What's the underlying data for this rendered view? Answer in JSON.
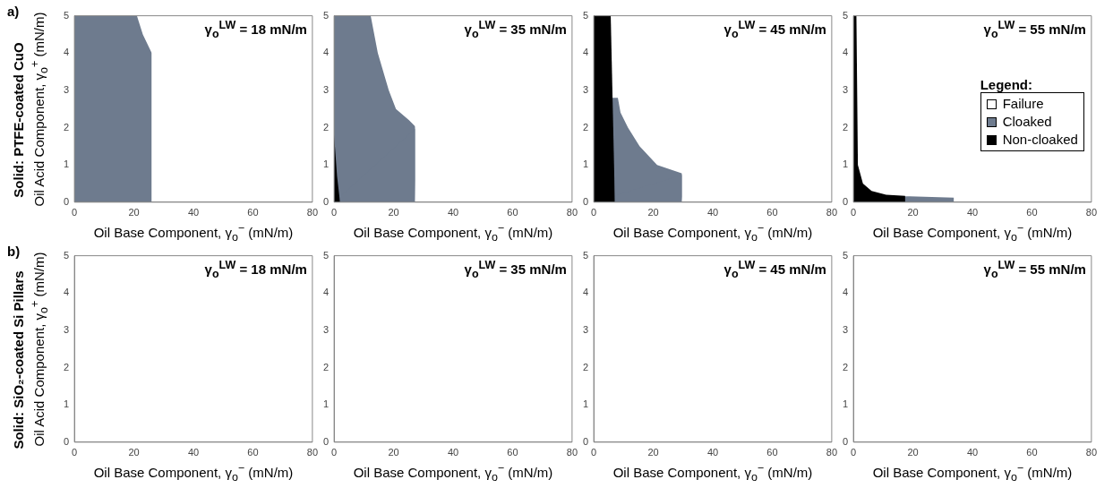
{
  "chart_data": [
    {
      "type": "area",
      "title": "γ$_{o}$$^{LW}$ = 18 mN/m",
      "xlabel": "Oil Base Component, γ$_{o}$$^{−}$ (mN/m)",
      "ylabel": "Oil Acid Component, γ$_{o}$$^{+}$ (mN/m)",
      "annotations": [
        "a)",
        "Solid: PTFE-coated CuO"
      ],
      "xlim": [
        0,
        80
      ],
      "xticks": [
        0,
        20,
        40,
        60,
        80
      ],
      "ylim": [
        0,
        5
      ],
      "yticks": [
        0,
        1,
        2,
        3,
        4,
        5
      ],
      "series": [
        {
          "color": "#6e7b8e",
          "x": [
            0,
            21,
            23,
            26,
            26
          ],
          "values": [
            5,
            5,
            4.5,
            4,
            0
          ]
        }
      ]
    },
    {
      "type": "area",
      "title": "γ$_{o}$$^{LW}$ = 35 mN/m",
      "xlabel": "Oil Base Component, γ$_{o}$$^{−}$ (mN/m)",
      "xlim": [
        0,
        80
      ],
      "xticks": [
        0,
        20,
        40,
        60,
        80
      ],
      "ylim": [
        0,
        5
      ],
      "yticks": [
        0,
        1,
        2,
        3,
        4,
        5
      ],
      "series": [
        {
          "color": "#6e7b8e",
          "x": [
            0,
            12.3,
            14.7,
            18.4,
            20.8,
            25.2,
            27.7,
            27.2
          ],
          "values": [
            5,
            5,
            4,
            3,
            2.5,
            2.2,
            2,
            0
          ]
        },
        {
          "color": "#000000",
          "x": [
            0,
            1,
            2
          ],
          "values": [
            1.8,
            0.7,
            0
          ]
        }
      ]
    },
    {
      "type": "area",
      "title": "γ$_{o}$$^{LW}$ = 45 mN/m",
      "xlabel": "Oil Base Component, γ$_{o}$$^{−}$ (mN/m)",
      "xlim": [
        0,
        80
      ],
      "xticks": [
        0,
        20,
        40,
        60,
        80
      ],
      "ylim": [
        0,
        5
      ],
      "yticks": [
        0,
        1,
        2,
        3,
        4,
        5
      ],
      "series": [
        {
          "color": "#6e7b8e",
          "x": [
            0,
            8.1,
            9,
            11.5,
            15.4,
            21.3,
            30.4,
            29.6
          ],
          "values": [
            2.8,
            2.8,
            2.4,
            2,
            1.5,
            1,
            0.75,
            0
          ]
        },
        {
          "color": "#000000",
          "x": [
            0,
            5.7,
            7.1
          ],
          "values": [
            5,
            5,
            0
          ]
        }
      ]
    },
    {
      "type": "area",
      "title": "γ$_{o}$$^{LW}$ = 55 mN/m",
      "xlabel": "Oil Base Component, γ$_{o}$$^{−}$ (mN/m)",
      "xlim": [
        0,
        80
      ],
      "xticks": [
        0,
        20,
        40,
        60,
        80
      ],
      "ylim": [
        0,
        5
      ],
      "yticks": [
        0,
        1,
        2,
        3,
        4,
        5
      ],
      "legend": "right",
      "legend_title": "Legend:",
      "series": [
        {
          "name": "Failure",
          "color": "#ffffff"
        },
        {
          "name": "Cloaked",
          "color": "#6e7b8e",
          "x": [
            0,
            17.4,
            33.8,
            33.8
          ],
          "values": [
            0.17,
            0.16,
            0.12,
            0
          ]
        },
        {
          "name": "Non-cloaked",
          "color": "#000000",
          "x": [
            0,
            1,
            1.5,
            3.2,
            6.1,
            11,
            17.4,
            17.4
          ],
          "values": [
            5,
            5,
            1,
            0.5,
            0.3,
            0.2,
            0.17,
            0
          ]
        }
      ]
    },
    {
      "type": "area",
      "title": "γ$_{o}$$^{LW}$ = 18 mN/m",
      "xlabel": "Oil Base Component, γ$_{o}$$^{−}$ (mN/m)",
      "ylabel": "Oil Acid Component, γ$_{o}$$^{+}$ (mN/m)",
      "annotations": [
        "b)",
        "Solid: SiO₂-coated Si Pillars"
      ],
      "xlim": [
        0,
        80
      ],
      "xticks": [
        0,
        20,
        40,
        60,
        80
      ],
      "ylim": [
        0,
        5
      ],
      "yticks": [
        0,
        1,
        2,
        3,
        4,
        5
      ]
    },
    {
      "type": "area",
      "title": "γ$_{o}$$^{LW}$ = 35 mN/m",
      "xlabel": "Oil Base Component, γ$_{o}$$^{−}$ (mN/m)",
      "xlim": [
        0,
        80
      ],
      "xticks": [
        0,
        20,
        40,
        60,
        80
      ],
      "ylim": [
        0,
        5
      ],
      "yticks": [
        0,
        1,
        2,
        3,
        4,
        5
      ]
    },
    {
      "type": "area",
      "title": "γ$_{o}$$^{LW}$ = 45 mN/m",
      "xlabel": "Oil Base Component, γ$_{o}$$^{−}$ (mN/m)",
      "xlim": [
        0,
        80
      ],
      "xticks": [
        0,
        20,
        40,
        60,
        80
      ],
      "ylim": [
        0,
        5
      ],
      "yticks": [
        0,
        1,
        2,
        3,
        4,
        5
      ]
    },
    {
      "type": "area",
      "title": "γ$_{o}$$^{LW}$ = 55 mN/m",
      "xlabel": "Oil Base Component, γ$_{o}$$^{−}$ (mN/m)",
      "xlim": [
        0,
        80
      ],
      "xticks": [
        0,
        20,
        40,
        60,
        80
      ],
      "ylim": [
        0,
        5
      ],
      "yticks": [
        0,
        1,
        2,
        3,
        4,
        5
      ]
    }
  ]
}
